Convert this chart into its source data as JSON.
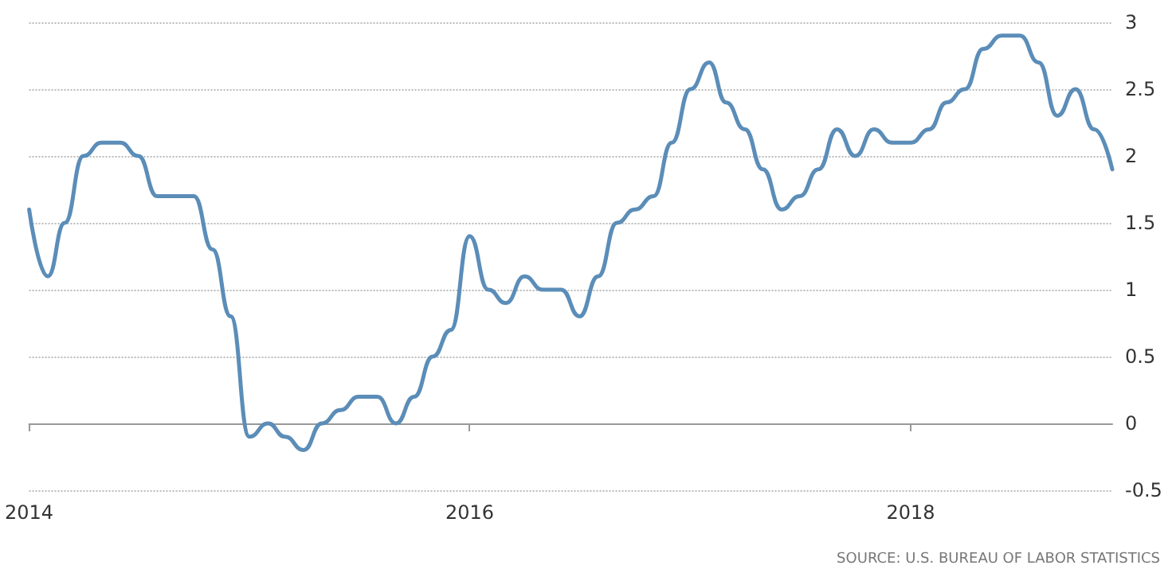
{
  "chart_data": {
    "type": "line",
    "x": [
      "2014-01",
      "2014-02",
      "2014-03",
      "2014-04",
      "2014-05",
      "2014-06",
      "2014-07",
      "2014-08",
      "2014-09",
      "2014-10",
      "2014-11",
      "2014-12",
      "2015-01",
      "2015-02",
      "2015-03",
      "2015-04",
      "2015-05",
      "2015-06",
      "2015-07",
      "2015-08",
      "2015-09",
      "2015-10",
      "2015-11",
      "2015-12",
      "2016-01",
      "2016-02",
      "2016-03",
      "2016-04",
      "2016-05",
      "2016-06",
      "2016-07",
      "2016-08",
      "2016-09",
      "2016-10",
      "2016-11",
      "2016-12",
      "2017-01",
      "2017-02",
      "2017-03",
      "2017-04",
      "2017-05",
      "2017-06",
      "2017-07",
      "2017-08",
      "2017-09",
      "2017-10",
      "2017-11",
      "2017-12",
      "2018-01",
      "2018-02",
      "2018-03",
      "2018-04",
      "2018-05",
      "2018-06",
      "2018-07",
      "2018-08",
      "2018-09",
      "2018-10",
      "2018-11",
      "2018-12"
    ],
    "series": [
      {
        "color": "#5b8db8",
        "values": [
          1.6,
          1.1,
          1.5,
          2.0,
          2.1,
          2.1,
          2.0,
          1.7,
          1.7,
          1.7,
          1.3,
          0.8,
          -0.1,
          0.0,
          -0.1,
          -0.2,
          0.0,
          0.1,
          0.2,
          0.2,
          0.0,
          0.2,
          0.5,
          0.7,
          1.4,
          1.0,
          0.9,
          1.1,
          1.0,
          1.0,
          0.8,
          1.1,
          1.5,
          1.6,
          1.7,
          2.1,
          2.5,
          2.7,
          2.4,
          2.2,
          1.9,
          1.6,
          1.7,
          1.9,
          2.2,
          2.0,
          2.2,
          2.1,
          2.1,
          2.2,
          2.4,
          2.5,
          2.8,
          2.9,
          2.9,
          2.7,
          2.3,
          2.5,
          2.2,
          1.9
        ]
      }
    ],
    "xlim": [
      "2014-01",
      "2018-12"
    ],
    "xticks": [
      "2014",
      "2016",
      "2018"
    ],
    "ylim": [
      -0.5,
      3
    ],
    "yticks": [
      -0.5,
      0,
      0.5,
      1,
      1.5,
      2,
      2.5,
      3
    ],
    "grid": "y",
    "marker": "none",
    "line_style": "solid",
    "annotations": [
      "SOURCE: U.S. BUREAU OF LABOR STATISTICS"
    ]
  }
}
